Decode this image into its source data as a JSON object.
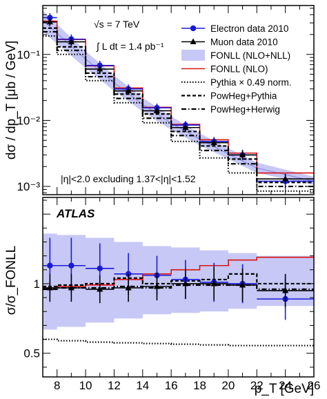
{
  "chart_data": [
    {
      "type": "line",
      "panel": "top",
      "ylabel": "dσ / dp_T [μb / GeV]",
      "yscale": "log",
      "xlim": [
        7,
        26
      ],
      "ylim": [
        0.00075,
        0.55
      ],
      "ytick_labels": [
        "10⁻³",
        "10⁻²",
        "10⁻¹"
      ],
      "annotations": {
        "energy": "√s = 7 TeV",
        "luminosity": "∫ L dt = 1.4 pb⁻¹",
        "eta_cut": "|η|<2.0 excluding 1.37<|η|<1.52"
      },
      "legend_position": "top-right",
      "series": [
        {
          "name": "Electron data 2010",
          "color": "#1a1ad6",
          "marker": "circle",
          "x": [
            7.5,
            9,
            11,
            13,
            15,
            17,
            19,
            21,
            24
          ],
          "xerr": [
            0.5,
            1,
            1,
            1,
            1,
            1,
            1,
            1,
            2
          ],
          "y": [
            0.36,
            0.17,
            0.068,
            0.03,
            0.0155,
            0.0085,
            0.0048,
            0.003,
            0.0012
          ],
          "yerr_lo": [
            0.04,
            0.02,
            0.008,
            0.004,
            0.002,
            0.0011,
            0.0007,
            0.0005,
            0.00025
          ],
          "yerr_hi": [
            0.06,
            0.03,
            0.012,
            0.005,
            0.0025,
            0.0013,
            0.0008,
            0.0006,
            0.0003
          ]
        },
        {
          "name": "Muon data 2010",
          "color": "#000000",
          "marker": "triangle",
          "x": [
            7.5,
            9,
            11,
            13,
            15,
            17,
            19,
            21,
            24
          ],
          "xerr": [
            0.5,
            1,
            1,
            1,
            1,
            1,
            1,
            1,
            2
          ],
          "y": [
            0.31,
            0.155,
            0.06,
            0.028,
            0.014,
            0.0078,
            0.0046,
            0.003,
            0.0013
          ],
          "yerr_lo": [
            0.04,
            0.02,
            0.007,
            0.0035,
            0.0018,
            0.001,
            0.0006,
            0.0004,
            0.0002
          ],
          "yerr_hi": [
            0.05,
            0.025,
            0.009,
            0.004,
            0.002,
            0.0012,
            0.0007,
            0.0005,
            0.00025
          ]
        },
        {
          "name": "FONLL (NLO+NLL)",
          "style": "band",
          "color": "#c7c8f5",
          "x": [
            7,
            8,
            10,
            12,
            14,
            16,
            18,
            20,
            22,
            26
          ],
          "center": [
            0.33,
            0.21,
            0.085,
            0.037,
            0.0175,
            0.0091,
            0.0052,
            0.0031,
            0.0019,
            0.0012
          ],
          "lo": [
            0.22,
            0.145,
            0.062,
            0.028,
            0.0136,
            0.0072,
            0.0042,
            0.0026,
            0.0016,
            0.00105
          ],
          "hi": [
            0.46,
            0.285,
            0.112,
            0.048,
            0.022,
            0.0115,
            0.0064,
            0.0038,
            0.0023,
            0.0014
          ]
        },
        {
          "name": "FONLL (NLO)",
          "style": "step",
          "color": "#dd1111",
          "edges": [
            7,
            8,
            10,
            12,
            14,
            16,
            18,
            20,
            22,
            26
          ],
          "y": [
            0.32,
            0.168,
            0.067,
            0.031,
            0.0158,
            0.0087,
            0.0051,
            0.0032,
            0.0016
          ]
        },
        {
          "name": "Pythia × 0.49 norm.",
          "style": "step-dotted",
          "color": "#000000",
          "edges": [
            7,
            8,
            10,
            12,
            14,
            16,
            18,
            20,
            22,
            26
          ],
          "y": [
            0.19,
            0.1,
            0.04,
            0.0185,
            0.0092,
            0.0048,
            0.0027,
            0.0016,
            0.00085
          ]
        },
        {
          "name": "PowHeg+Pythia",
          "style": "step-dashed",
          "color": "#000000",
          "edges": [
            7,
            8,
            10,
            12,
            14,
            16,
            18,
            20,
            22,
            26
          ],
          "y": [
            0.25,
            0.13,
            0.052,
            0.025,
            0.0125,
            0.0068,
            0.0041,
            0.0026,
            0.00115
          ]
        },
        {
          "name": "PowHeg+Herwig",
          "style": "step-dashdot",
          "color": "#000000",
          "edges": [
            7,
            8,
            10,
            12,
            14,
            16,
            18,
            20,
            22,
            26
          ],
          "y": [
            0.22,
            0.115,
            0.046,
            0.0215,
            0.0108,
            0.0059,
            0.0035,
            0.0022,
            0.001
          ]
        }
      ]
    },
    {
      "type": "line",
      "panel": "bottom",
      "ylabel": "σ/σ_FONLL",
      "xlabel": "p_T [GeV]",
      "xlim": [
        7,
        26
      ],
      "ylim": [
        0.33,
        1.62
      ],
      "xticks": [
        8,
        10,
        12,
        14,
        16,
        18,
        20,
        22,
        24,
        26
      ],
      "yticks": [
        0.5,
        1
      ],
      "label": "ATLAS",
      "series": [
        {
          "name": "FONLL (NLO+NLL)",
          "style": "band",
          "color": "#c7c8f5",
          "edges": [
            7,
            8,
            10,
            12,
            14,
            16,
            18,
            20,
            22,
            26
          ],
          "lo": [
            0.67,
            0.69,
            0.72,
            0.75,
            0.78,
            0.79,
            0.8,
            0.82,
            0.84
          ],
          "hi": [
            1.36,
            1.35,
            1.33,
            1.3,
            1.27,
            1.26,
            1.24,
            1.22,
            1.2
          ]
        },
        {
          "name": "Electron data 2010",
          "color": "#1a1ad6",
          "marker": "circle",
          "x": [
            7.5,
            9,
            11,
            13,
            15,
            17,
            19,
            21,
            24
          ],
          "xerr": [
            0.5,
            1,
            1,
            1,
            1,
            1,
            1,
            1,
            2
          ],
          "y": [
            1.13,
            1.13,
            1.11,
            1.07,
            1.06,
            1.03,
            1.01,
            1.0,
            0.89
          ],
          "yerr": [
            0.2,
            0.2,
            0.18,
            0.15,
            0.14,
            0.14,
            0.14,
            0.14,
            0.15
          ]
        },
        {
          "name": "Muon data 2010",
          "color": "#000000",
          "marker": "triangle",
          "x": [
            7.5,
            9,
            11,
            13,
            15,
            17,
            19,
            21,
            24
          ],
          "xerr": [
            0.5,
            1,
            1,
            1,
            1,
            1,
            1,
            1,
            2
          ],
          "y": [
            0.97,
            0.97,
            0.96,
            0.97,
            0.98,
            1.0,
            1.0,
            0.99,
            0.95
          ],
          "yerr": [
            0.1,
            0.1,
            0.1,
            0.1,
            0.1,
            0.11,
            0.12,
            0.12,
            0.12
          ]
        },
        {
          "name": "FONLL (NLO)",
          "style": "step",
          "color": "#dd1111",
          "edges": [
            7,
            8,
            10,
            12,
            14,
            16,
            18,
            20,
            22,
            26
          ],
          "y": [
            0.97,
            0.98,
            0.99,
            1.03,
            1.07,
            1.1,
            1.13,
            1.17,
            1.19
          ]
        },
        {
          "name": "PowHeg+Pythia",
          "style": "step-dashed",
          "color": "#000000",
          "edges": [
            7,
            8,
            10,
            12,
            14,
            16,
            18,
            20,
            22,
            26
          ],
          "y": [
            0.98,
            0.99,
            1.0,
            1.04,
            1.0,
            1.02,
            1.03,
            1.07,
            1.0
          ]
        },
        {
          "name": "PowHeg+Herwig",
          "style": "step-dashdot",
          "color": "#000000",
          "edges": [
            7,
            8,
            10,
            12,
            14,
            16,
            18,
            20,
            22,
            26
          ],
          "y": [
            0.96,
            0.97,
            0.97,
            0.98,
            0.97,
            0.99,
            0.99,
            0.99,
            0.96
          ]
        },
        {
          "name": "Pythia × 0.49 norm.",
          "style": "step-dotted",
          "color": "#000000",
          "edges": [
            7,
            8,
            10,
            12,
            14,
            16,
            18,
            20,
            22,
            26
          ],
          "y": [
            0.6,
            0.59,
            0.58,
            0.575,
            0.57,
            0.565,
            0.56,
            0.555,
            0.555
          ]
        }
      ]
    }
  ]
}
